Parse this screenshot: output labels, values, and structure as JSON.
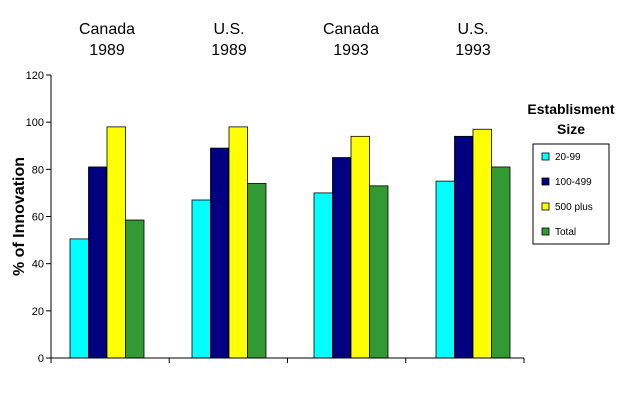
{
  "chart_data": {
    "type": "bar",
    "categories": [
      [
        "Canada",
        "1989"
      ],
      [
        "U.S.",
        "1989"
      ],
      [
        "Canada",
        "1993"
      ],
      [
        "U.S.",
        "1993"
      ]
    ],
    "ylabel": "% of Innovation",
    "ylim": [
      0,
      120
    ],
    "yticks": [
      0,
      20,
      40,
      60,
      80,
      100,
      120
    ],
    "grid": false,
    "legend": {
      "title": [
        "Establisment",
        "Size"
      ],
      "position": "right"
    },
    "series": [
      {
        "name": "20-99",
        "color": "#00ffff",
        "values": [
          50.5,
          67,
          70,
          75
        ]
      },
      {
        "name": "100-499",
        "color": "#000080",
        "values": [
          81,
          89,
          85,
          94
        ]
      },
      {
        "name": "500 plus",
        "color": "#ffff00",
        "values": [
          98,
          98,
          94,
          97
        ]
      },
      {
        "name": "Total",
        "color": "#339933",
        "values": [
          58.5,
          74,
          73,
          81
        ]
      }
    ]
  }
}
